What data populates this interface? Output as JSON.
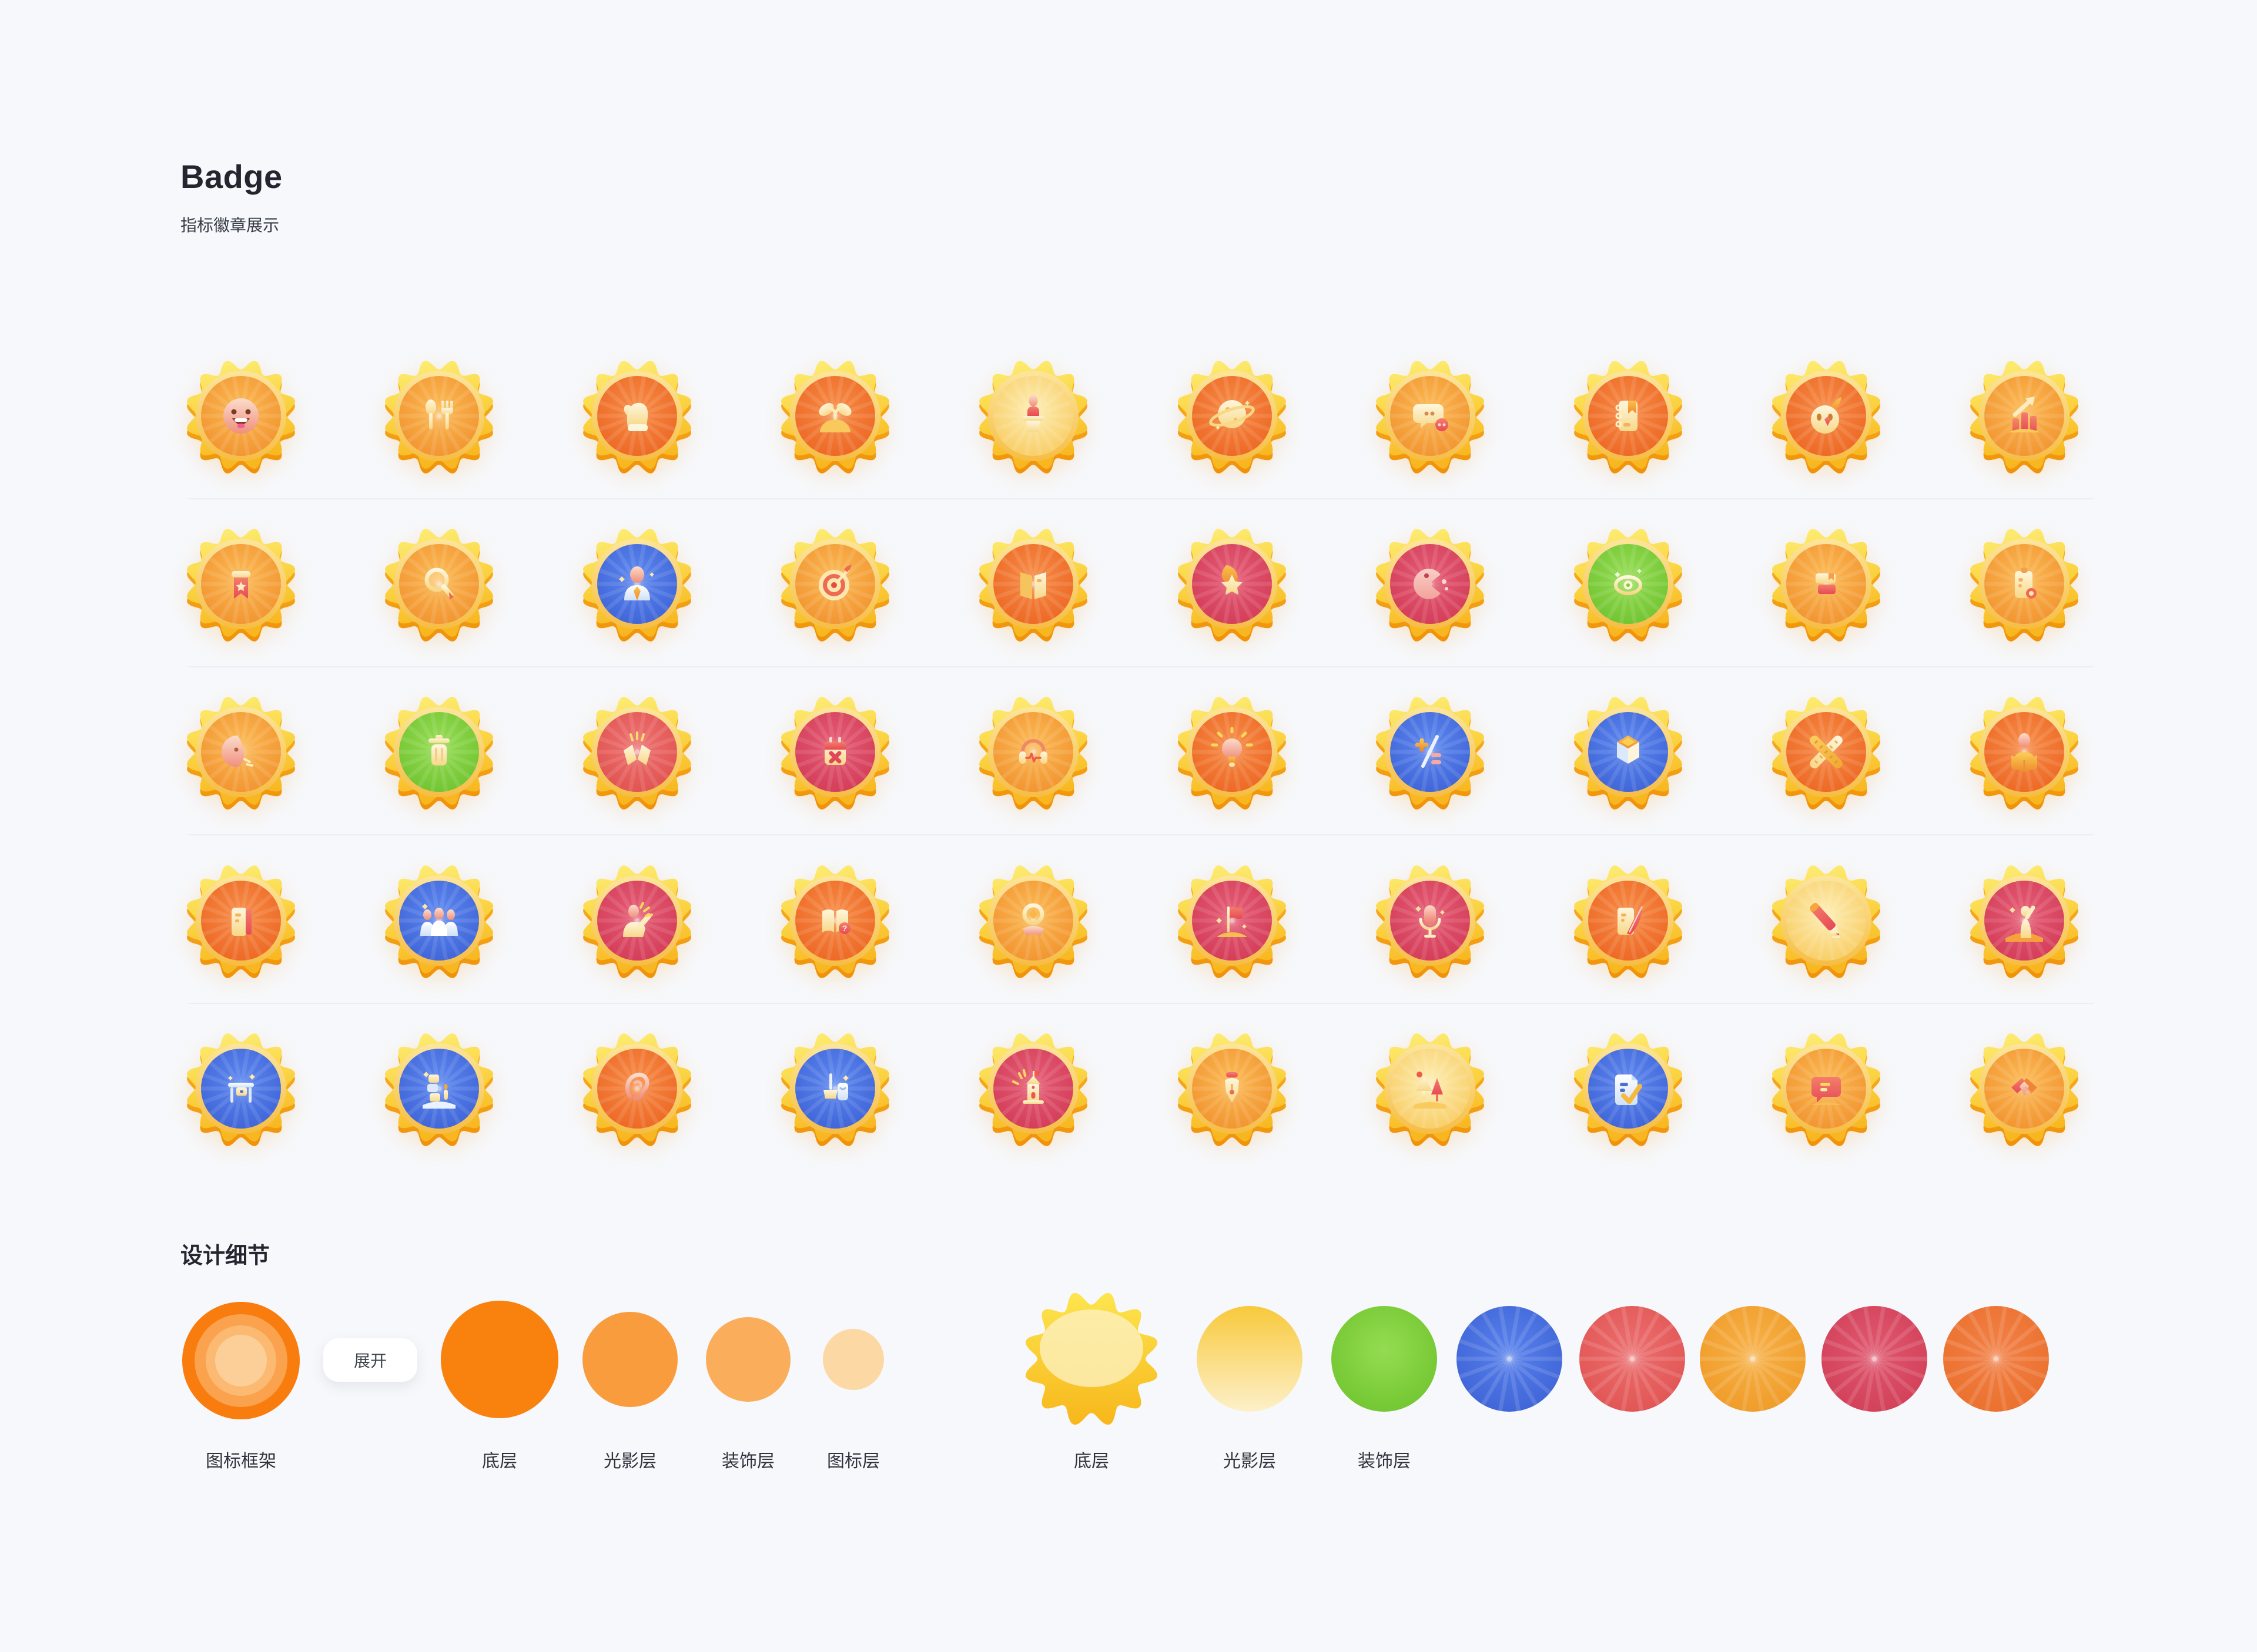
{
  "page": {
    "background": "#F7F8FB"
  },
  "header": {
    "title": "Badge",
    "subtitle": "指标徽章展示"
  },
  "badge_variants": {
    "orange": [
      "#FCB952",
      "#F0912E"
    ],
    "deep": [
      "#F68B45",
      "#EC6522"
    ],
    "lightyellow": [
      "#FDEDB2",
      "#F8CB60"
    ],
    "blue": [
      "#5C87EF",
      "#3D62D6"
    ],
    "green": [
      "#96DD54",
      "#6EC22E"
    ],
    "crimson": [
      "#E55C74",
      "#D23A56"
    ],
    "salmon": [
      "#ED7170",
      "#E0514E"
    ]
  },
  "badge_grid": {
    "rows": [
      [
        {
          "name": "smiley",
          "bg": "orange"
        },
        {
          "name": "cutlery",
          "bg": "orange"
        },
        {
          "name": "mitten",
          "bg": "deep"
        },
        {
          "name": "sprout",
          "bg": "deep"
        },
        {
          "name": "podium",
          "bg": "lightyellow"
        },
        {
          "name": "planet",
          "bg": "deep"
        },
        {
          "name": "chat",
          "bg": "orange"
        },
        {
          "name": "notebook",
          "bg": "deep"
        },
        {
          "name": "bird",
          "bg": "deep"
        },
        {
          "name": "chart",
          "bg": "orange"
        }
      ],
      [
        {
          "name": "ribbon",
          "bg": "orange"
        },
        {
          "name": "magnifier",
          "bg": "orange"
        },
        {
          "name": "user",
          "bg": "blue"
        },
        {
          "name": "target",
          "bg": "orange"
        },
        {
          "name": "open-folder",
          "bg": "deep"
        },
        {
          "name": "star-flame",
          "bg": "crimson"
        },
        {
          "name": "pacman",
          "bg": "crimson"
        },
        {
          "name": "eye",
          "bg": "green"
        },
        {
          "name": "books",
          "bg": "orange"
        },
        {
          "name": "clipboard",
          "bg": "orange"
        }
      ],
      [
        {
          "name": "profile",
          "bg": "orange"
        },
        {
          "name": "trash",
          "bg": "green"
        },
        {
          "name": "broken-book",
          "bg": "salmon"
        },
        {
          "name": "calendar-x",
          "bg": "crimson"
        },
        {
          "name": "headphones",
          "bg": "orange"
        },
        {
          "name": "bulb",
          "bg": "deep"
        },
        {
          "name": "math",
          "bg": "blue"
        },
        {
          "name": "cube",
          "bg": "blue"
        },
        {
          "name": "rulers",
          "bg": "deep"
        },
        {
          "name": "reader",
          "bg": "deep"
        }
      ],
      [
        {
          "name": "binder",
          "bg": "deep"
        },
        {
          "name": "team",
          "bg": "blue"
        },
        {
          "name": "hand-raise",
          "bg": "crimson"
        },
        {
          "name": "book-question",
          "bg": "deep"
        },
        {
          "name": "hand-coin",
          "bg": "orange"
        },
        {
          "name": "flag",
          "bg": "crimson"
        },
        {
          "name": "microphone",
          "bg": "crimson"
        },
        {
          "name": "quill",
          "bg": "deep"
        },
        {
          "name": "pencil",
          "bg": "lightyellow"
        },
        {
          "name": "moon-person",
          "bg": "crimson"
        }
      ],
      [
        {
          "name": "desk",
          "bg": "blue"
        },
        {
          "name": "blocks",
          "bg": "blue"
        },
        {
          "name": "ear",
          "bg": "deep"
        },
        {
          "name": "cleaning",
          "bg": "blue"
        },
        {
          "name": "castle",
          "bg": "crimson"
        },
        {
          "name": "pen-nib",
          "bg": "orange"
        },
        {
          "name": "trees",
          "bg": "lightyellow"
        },
        {
          "name": "doc-check",
          "bg": "blue"
        },
        {
          "name": "message",
          "bg": "orange"
        },
        {
          "name": "handshake",
          "bg": "orange"
        }
      ]
    ]
  },
  "details": {
    "heading": "设计细节",
    "expand_button": "展开",
    "frame": {
      "name": "icon-frame",
      "label": "图标框架",
      "rings": [
        {
          "r": 100,
          "color": "#F97D0E"
        },
        {
          "r": 79,
          "color": "#FAA24E"
        },
        {
          "r": 60,
          "color": "#FBB971"
        },
        {
          "r": 44,
          "color": "#FCCF99"
        }
      ]
    },
    "left_layers": [
      {
        "name": "base-layer",
        "label": "底层",
        "color": "#F8820D",
        "radius": 100
      },
      {
        "name": "shade-layer",
        "label": "光影层",
        "color": "#F99C3E",
        "radius": 81
      },
      {
        "name": "decor-layer",
        "label": "装饰层",
        "color": "#FAAE5B",
        "radius": 72
      },
      {
        "name": "icon-layer",
        "label": "图标层",
        "color": "#FCD9A4",
        "radius": 52
      }
    ],
    "right_layers": {
      "base": {
        "name": "base-scallop",
        "label": "底层",
        "gradient": [
          "#FDE54E",
          "#F7B71B"
        ],
        "overlay": "#FCF0BE"
      },
      "items": [
        {
          "name": "shade-circle",
          "label": "光影层",
          "type": "plain-linear",
          "gradient": [
            "#F8C93B",
            "#FDF0CA"
          ]
        },
        {
          "name": "decor-circle-green",
          "label": "装饰层",
          "type": "plain",
          "gradient": [
            "#94DC52",
            "#70C42E"
          ]
        },
        {
          "name": "decor-circle-blue",
          "label": "",
          "type": "rays",
          "gradient": [
            "#5881EC",
            "#3D62D5"
          ]
        },
        {
          "name": "decor-circle-salmon",
          "label": "",
          "type": "rays",
          "gradient": [
            "#EC6F6F",
            "#E05352"
          ]
        },
        {
          "name": "decor-circle-amber",
          "label": "",
          "type": "rays",
          "gradient": [
            "#F7B148",
            "#EF9A26"
          ]
        },
        {
          "name": "decor-circle-crimson",
          "label": "",
          "type": "rays",
          "gradient": [
            "#E0586F",
            "#D13E57"
          ]
        },
        {
          "name": "decor-circle-orange",
          "label": "",
          "type": "rays",
          "gradient": [
            "#F28148",
            "#EA6F2B"
          ]
        }
      ]
    }
  }
}
